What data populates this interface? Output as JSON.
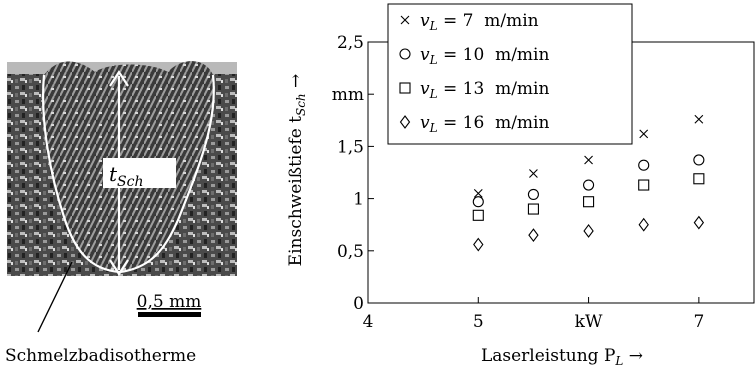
{
  "micrograph": {
    "t_label_main": "t",
    "t_label_sub": "Sch",
    "scale_label": "0,5 mm",
    "caption": "Schmelzbadisotherme"
  },
  "chart_data": {
    "type": "scatter",
    "xlim": [
      4,
      7.5
    ],
    "ylim": [
      0,
      2.5
    ],
    "x_ticks": [
      {
        "value": 4,
        "label": "4"
      },
      {
        "value": 5,
        "label": "5"
      },
      {
        "value": 6,
        "label": "kW"
      },
      {
        "value": 7,
        "label": "7"
      }
    ],
    "y_ticks": [
      {
        "value": 0,
        "label": "0"
      },
      {
        "value": 0.5,
        "label": "0,5"
      },
      {
        "value": 1,
        "label": "1"
      },
      {
        "value": 1.5,
        "label": "1,5"
      },
      {
        "value": 2,
        "label": "mm"
      },
      {
        "value": 2.5,
        "label": "2,5"
      }
    ],
    "xlabel": "Laserleistung P_L →",
    "xlabel_main": "Laserleistung P",
    "xlabel_sub": "L",
    "xlabel_arrow": " →",
    "ylabel": "Einschweißtiefe t_Sch →",
    "ylabel_main": "Einschweißtiefe t",
    "ylabel_sub": "Sch",
    "ylabel_arrow": " →",
    "legend_position": "top-left",
    "series": [
      {
        "name": "v_L = 7 m/min",
        "name_var": "v",
        "name_sub": "L",
        "name_rest": " = 7  m/min",
        "marker": "cross",
        "x": [
          5,
          5.5,
          6,
          6.5,
          7
        ],
        "y": [
          1.05,
          1.24,
          1.37,
          1.62,
          1.76
        ]
      },
      {
        "name": "v_L = 10 m/min",
        "name_var": "v",
        "name_sub": "L",
        "name_rest": " = 10  m/min",
        "marker": "circle",
        "x": [
          5,
          5.5,
          6,
          6.5,
          7
        ],
        "y": [
          0.97,
          1.04,
          1.13,
          1.32,
          1.37
        ]
      },
      {
        "name": "v_L = 13 m/min",
        "name_var": "v",
        "name_sub": "L",
        "name_rest": " = 13  m/min",
        "marker": "square",
        "x": [
          5,
          5.5,
          6,
          6.5,
          7
        ],
        "y": [
          0.84,
          0.9,
          0.97,
          1.13,
          1.19
        ]
      },
      {
        "name": "v_L = 16 m/min",
        "name_var": "v",
        "name_sub": "L",
        "name_rest": " = 16  m/min",
        "marker": "diamond",
        "x": [
          5,
          5.5,
          6,
          6.5,
          7
        ],
        "y": [
          0.56,
          0.65,
          0.69,
          0.75,
          0.77
        ]
      }
    ]
  }
}
